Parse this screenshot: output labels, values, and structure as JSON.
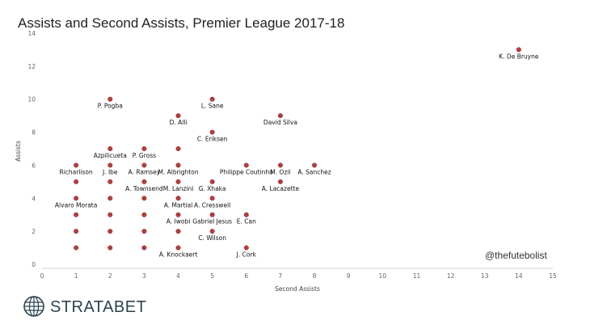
{
  "chart_data": {
    "type": "scatter",
    "title": "Assists and Second Assists, Premier League 2017-18",
    "xlabel": "Second Assists",
    "ylabel": "Assists",
    "xlim": [
      0,
      15
    ],
    "ylim": [
      0,
      14
    ],
    "x_ticks": [
      "0",
      "1",
      "2",
      "3",
      "4",
      "5",
      "6",
      "7",
      "8",
      "9",
      "10",
      "11",
      "12",
      "13",
      "14",
      "15"
    ],
    "y_ticks": [
      "0",
      "2",
      "4",
      "6",
      "8",
      "10",
      "12",
      "14"
    ],
    "grid": false,
    "marker_color": "#b83c3c",
    "points": [
      {
        "x": 14,
        "y": 13,
        "label": "K. De Bruyne"
      },
      {
        "x": 2,
        "y": 10,
        "label": "P. Pogba"
      },
      {
        "x": 5,
        "y": 10,
        "label": "L. Sane"
      },
      {
        "x": 4,
        "y": 9,
        "label": "D. Alli"
      },
      {
        "x": 7,
        "y": 9,
        "label": "David Silva"
      },
      {
        "x": 5,
        "y": 8,
        "label": "C. Eriksen"
      },
      {
        "x": 2,
        "y": 7,
        "label": "Azpilicueta"
      },
      {
        "x": 3,
        "y": 7,
        "label": "P. Gross"
      },
      {
        "x": 4,
        "y": 7,
        "label": ""
      },
      {
        "x": 1,
        "y": 6,
        "label": "Richarlison"
      },
      {
        "x": 2,
        "y": 6,
        "label": "J. Ibe"
      },
      {
        "x": 3,
        "y": 6,
        "label": "A. Ramsey"
      },
      {
        "x": 4,
        "y": 6,
        "label": "M. Albrighton"
      },
      {
        "x": 6,
        "y": 6,
        "label": "Philippe Coutinho"
      },
      {
        "x": 7,
        "y": 6,
        "label": "M. Ozil"
      },
      {
        "x": 8,
        "y": 6,
        "label": "A. Sanchez"
      },
      {
        "x": 1,
        "y": 5,
        "label": ""
      },
      {
        "x": 2,
        "y": 5,
        "label": ""
      },
      {
        "x": 3,
        "y": 5,
        "label": "A. Townsend"
      },
      {
        "x": 4,
        "y": 5,
        "label": "M. Lanzini"
      },
      {
        "x": 5,
        "y": 5,
        "label": "G. Xhaka"
      },
      {
        "x": 7,
        "y": 5,
        "label": "A. Lacazette"
      },
      {
        "x": 1,
        "y": 4,
        "label": "Alvaro Morata"
      },
      {
        "x": 2,
        "y": 4,
        "label": ""
      },
      {
        "x": 3,
        "y": 4,
        "label": ""
      },
      {
        "x": 4,
        "y": 4,
        "label": "A. Martial"
      },
      {
        "x": 5,
        "y": 4,
        "label": "A. Cresswell"
      },
      {
        "x": 1,
        "y": 3,
        "label": ""
      },
      {
        "x": 2,
        "y": 3,
        "label": ""
      },
      {
        "x": 3,
        "y": 3,
        "label": ""
      },
      {
        "x": 4,
        "y": 3,
        "label": "A. Iwobi"
      },
      {
        "x": 5,
        "y": 3,
        "label": "Gabriel Jesus"
      },
      {
        "x": 6,
        "y": 3,
        "label": "E. Can"
      },
      {
        "x": 1,
        "y": 2,
        "label": ""
      },
      {
        "x": 2,
        "y": 2,
        "label": ""
      },
      {
        "x": 3,
        "y": 2,
        "label": ""
      },
      {
        "x": 4,
        "y": 2,
        "label": ""
      },
      {
        "x": 5,
        "y": 2,
        "label": "C. Wilson"
      },
      {
        "x": 1,
        "y": 1,
        "label": ""
      },
      {
        "x": 2,
        "y": 1,
        "label": ""
      },
      {
        "x": 3,
        "y": 1,
        "label": ""
      },
      {
        "x": 4,
        "y": 1,
        "label": "A. Knockaert"
      },
      {
        "x": 6,
        "y": 1,
        "label": "J. Cork"
      }
    ]
  },
  "watermark": "@thefutebolist",
  "brand": {
    "name": "STRATABET",
    "color": "#2a4550"
  }
}
